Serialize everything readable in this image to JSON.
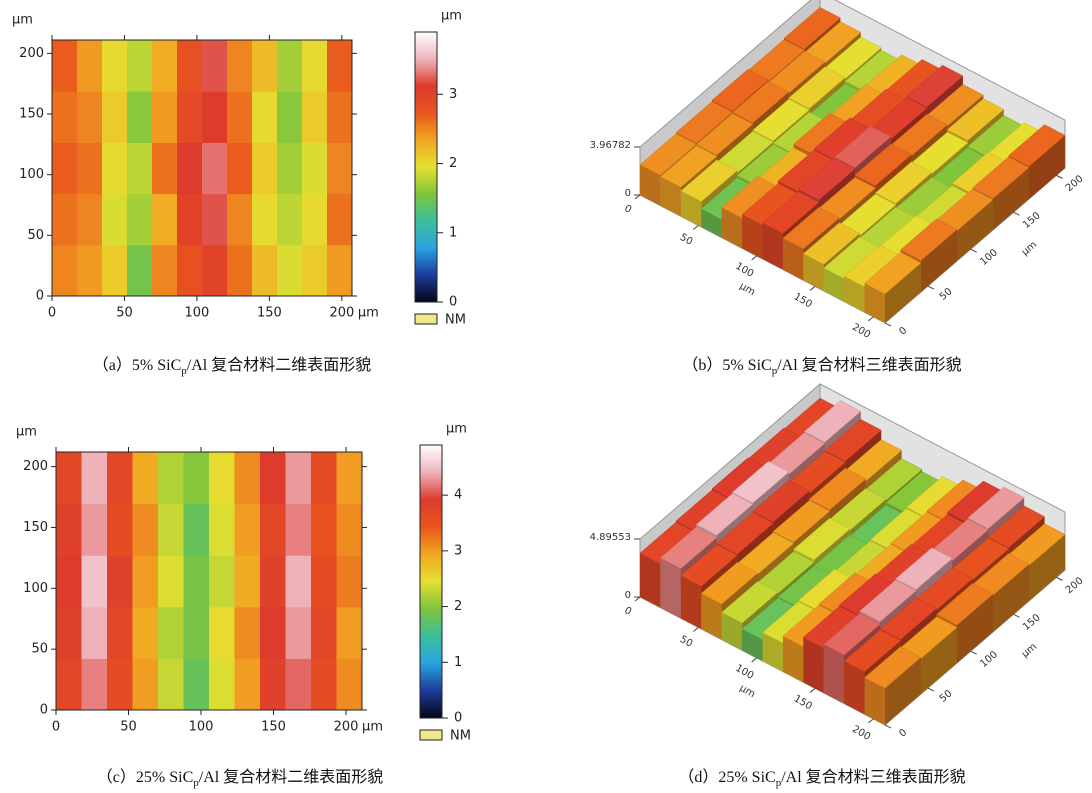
{
  "chart_data": [
    {
      "type": "heatmap",
      "caption": [
        "（a）5% SiC",
        "p",
        "/Al 复合材料二维表面形貌"
      ],
      "xunit": "µm",
      "yunit": "µm",
      "zunit": "µm",
      "nm_label": "NM",
      "nm_color": "#f0e88c",
      "xlim": [
        0,
        207
      ],
      "ylim": [
        0,
        211
      ],
      "xticks": [
        0,
        50,
        100,
        150,
        200
      ],
      "yticks": [
        0,
        50,
        100,
        150,
        200
      ],
      "zlim": [
        0,
        3.9
      ],
      "zticks": [
        0,
        1,
        2,
        3
      ],
      "colormap": [
        "#05051a",
        "#1c3c9c",
        "#2aa2e0",
        "#3cbf9c",
        "#7ec43c",
        "#e6e032",
        "#f2a622",
        "#e9561e",
        "#dd3a2e",
        "#eeb4bc",
        "#ffffff"
      ],
      "z": [
        [
          2.5,
          2.4,
          2.1,
          1.5,
          2.5,
          2.8,
          3.0,
          2.6,
          2.2,
          1.9,
          2.1,
          2.4
        ],
        [
          2.6,
          2.5,
          1.9,
          1.7,
          2.3,
          3.0,
          3.2,
          2.5,
          2.0,
          1.8,
          2.0,
          2.6
        ],
        [
          2.7,
          2.6,
          2.0,
          1.8,
          2.6,
          3.1,
          3.3,
          2.7,
          2.1,
          1.7,
          1.9,
          2.5
        ],
        [
          2.6,
          2.5,
          2.1,
          1.6,
          2.4,
          2.9,
          3.1,
          2.6,
          2.0,
          1.6,
          2.1,
          2.6
        ],
        [
          2.7,
          2.4,
          2.0,
          1.8,
          2.3,
          2.8,
          3.2,
          2.5,
          2.2,
          1.7,
          2.0,
          2.7
        ]
      ]
    },
    {
      "type": "surface3d",
      "caption": [
        "（b）5% SiC",
        "p",
        "/Al 复合材料三维表面形貌"
      ],
      "xlabel": "µm",
      "ylabel": "µm",
      "xlim": [
        0,
        210
      ],
      "ylim": [
        0,
        210
      ],
      "xticks": [
        0,
        50,
        100,
        150,
        200
      ],
      "yticks": [
        0,
        50,
        100,
        150,
        200
      ],
      "zlim": [
        0,
        3.96782
      ],
      "zticks": [
        0,
        3.96782
      ],
      "colormap": [
        "#05051a",
        "#1c3c9c",
        "#2aa2e0",
        "#3cbf9c",
        "#7ec43c",
        "#e6e032",
        "#f2a622",
        "#e9561e",
        "#dd3a2e",
        "#eeb4bc",
        "#ffffff"
      ],
      "z": [
        [
          2.5,
          2.4,
          2.1,
          1.5,
          2.5,
          2.8,
          3.0,
          2.6,
          2.2,
          1.9,
          2.1,
          2.4
        ],
        [
          2.6,
          2.5,
          1.9,
          1.7,
          2.3,
          3.0,
          3.2,
          2.5,
          2.0,
          1.8,
          2.0,
          2.6
        ],
        [
          2.7,
          2.6,
          2.0,
          1.8,
          2.6,
          3.1,
          3.3,
          2.7,
          2.1,
          1.7,
          1.9,
          2.5
        ],
        [
          2.6,
          2.5,
          2.1,
          1.6,
          2.4,
          2.9,
          3.1,
          2.6,
          2.0,
          1.6,
          2.1,
          2.6
        ],
        [
          2.7,
          2.4,
          2.0,
          1.8,
          2.3,
          2.8,
          3.2,
          2.5,
          2.2,
          1.7,
          2.0,
          2.7
        ]
      ]
    },
    {
      "type": "heatmap",
      "caption": [
        "（c）25% SiC",
        "p",
        "/Al 复合材料二维表面形貌"
      ],
      "xunit": "µm",
      "yunit": "µm",
      "zunit": "µm",
      "nm_label": "NM",
      "nm_color": "#f0e88c",
      "xlim": [
        0,
        211
      ],
      "ylim": [
        0,
        212
      ],
      "xticks": [
        0,
        50,
        100,
        150,
        200
      ],
      "yticks": [
        0,
        50,
        100,
        150,
        200
      ],
      "zlim": [
        0,
        4.9
      ],
      "zticks": [
        0,
        1,
        2,
        3,
        4
      ],
      "colormap": [
        "#05051a",
        "#1c3c9c",
        "#2aa2e0",
        "#3cbf9c",
        "#7ec43c",
        "#e6e032",
        "#f2a622",
        "#e9561e",
        "#dd3a2e",
        "#eeb4bc",
        "#ffffff"
      ],
      "z": [
        [
          3.7,
          4.2,
          3.6,
          3.0,
          2.3,
          1.8,
          2.4,
          3.0,
          3.8,
          4.1,
          3.6,
          3.1
        ],
        [
          3.8,
          4.4,
          3.7,
          2.9,
          2.2,
          1.9,
          2.5,
          3.1,
          3.9,
          4.3,
          3.7,
          3.0
        ],
        [
          3.9,
          4.5,
          3.8,
          3.0,
          2.4,
          1.9,
          2.3,
          2.9,
          3.8,
          4.4,
          3.6,
          3.2
        ],
        [
          3.8,
          4.3,
          3.6,
          3.1,
          2.3,
          1.8,
          2.4,
          3.0,
          3.7,
          4.2,
          3.5,
          3.1
        ],
        [
          3.7,
          4.4,
          3.7,
          2.9,
          2.2,
          2.0,
          2.5,
          3.1,
          3.9,
          4.3,
          3.6,
          3.0
        ]
      ]
    },
    {
      "type": "surface3d",
      "caption": [
        "（d）25% SiC",
        "p",
        "/Al 复合材料三维表面形貌"
      ],
      "xlabel": "µm",
      "ylabel": "µm",
      "xlim": [
        0,
        210
      ],
      "ylim": [
        0,
        210
      ],
      "xticks": [
        0,
        50,
        100,
        150,
        200
      ],
      "yticks": [
        0,
        50,
        100,
        150,
        200
      ],
      "zlim": [
        0,
        4.89553
      ],
      "zticks": [
        0,
        4.89553
      ],
      "colormap": [
        "#05051a",
        "#1c3c9c",
        "#2aa2e0",
        "#3cbf9c",
        "#7ec43c",
        "#e6e032",
        "#f2a622",
        "#e9561e",
        "#dd3a2e",
        "#eeb4bc",
        "#ffffff"
      ],
      "z": [
        [
          3.7,
          4.2,
          3.6,
          3.0,
          2.3,
          1.8,
          2.4,
          3.0,
          3.8,
          4.1,
          3.6,
          3.1
        ],
        [
          3.8,
          4.4,
          3.7,
          2.9,
          2.2,
          1.9,
          2.5,
          3.1,
          3.9,
          4.3,
          3.7,
          3.0
        ],
        [
          3.9,
          4.5,
          3.8,
          3.0,
          2.4,
          1.9,
          2.3,
          2.9,
          3.8,
          4.4,
          3.6,
          3.2
        ],
        [
          3.8,
          4.3,
          3.6,
          3.1,
          2.3,
          1.8,
          2.4,
          3.0,
          3.7,
          4.2,
          3.5,
          3.1
        ],
        [
          3.7,
          4.4,
          3.7,
          2.9,
          2.2,
          2.0,
          2.5,
          3.1,
          3.9,
          4.3,
          3.6,
          3.0
        ]
      ]
    }
  ]
}
